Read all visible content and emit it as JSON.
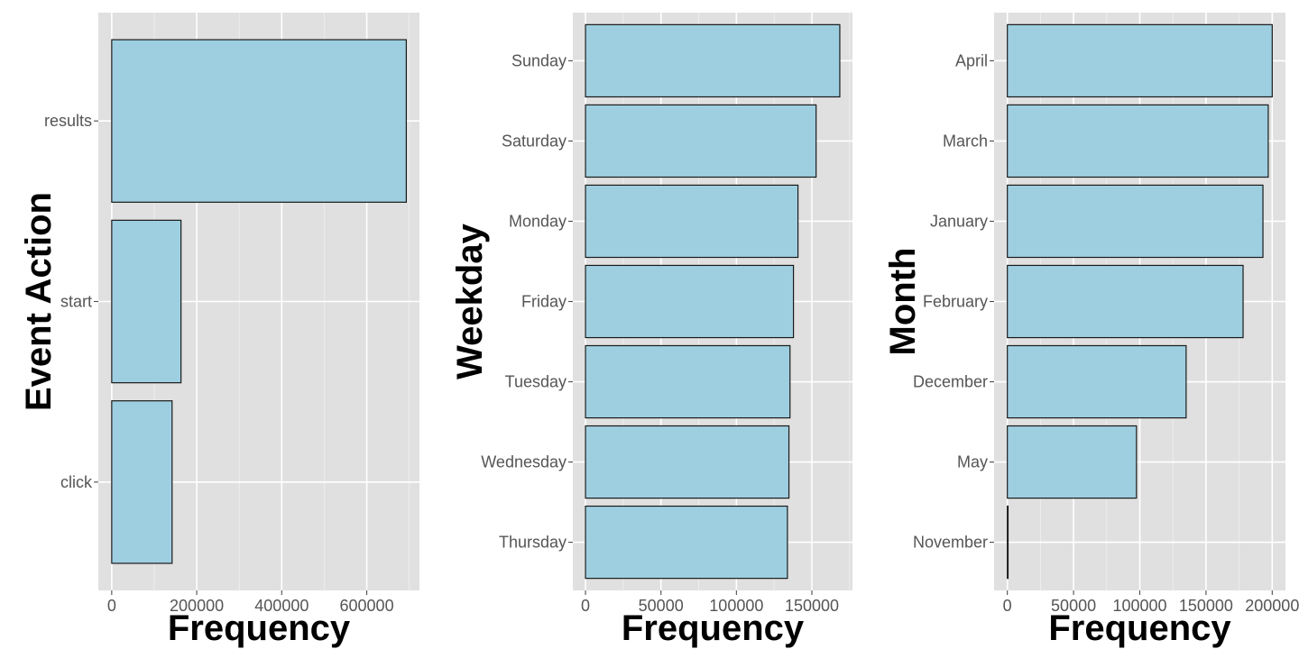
{
  "chart_data": [
    {
      "type": "bar",
      "orientation": "horizontal",
      "categories": [
        "results",
        "start",
        "click"
      ],
      "values": [
        693000,
        163000,
        142000
      ],
      "xlabel": "Frequency",
      "ylabel": "Event Action",
      "xlim": [
        -31500,
        724000
      ],
      "x_ticks": [
        0,
        200000,
        400000,
        600000
      ],
      "x_tick_labels": [
        "0",
        "200000",
        "400000",
        "600000"
      ],
      "grid": true,
      "bar_fill": "#9ecfe0",
      "bar_outline": "#1a1a1a"
    },
    {
      "type": "bar",
      "orientation": "horizontal",
      "categories": [
        "Sunday",
        "Saturday",
        "Monday",
        "Friday",
        "Tuesday",
        "Wednesday",
        "Thursday"
      ],
      "values": [
        168500,
        152800,
        140800,
        137800,
        135500,
        134800,
        133800
      ],
      "xlabel": "Frequency",
      "ylabel": "Weekday",
      "xlim": [
        -8400,
        176900
      ],
      "x_ticks": [
        0,
        50000,
        100000,
        150000
      ],
      "x_tick_labels": [
        "0",
        "50000",
        "100000",
        "150000"
      ],
      "grid": true,
      "bar_fill": "#9ecfe0",
      "bar_outline": "#1a1a1a"
    },
    {
      "type": "bar",
      "orientation": "horizontal",
      "categories": [
        "April",
        "March",
        "January",
        "February",
        "December",
        "May",
        "November"
      ],
      "values": [
        200000,
        197000,
        193000,
        178000,
        135000,
        97500,
        300
      ],
      "xlabel": "Frequency",
      "ylabel": "Month",
      "xlim": [
        -10000,
        210000
      ],
      "x_ticks": [
        0,
        50000,
        100000,
        150000,
        200000
      ],
      "x_tick_labels": [
        "0",
        "50000",
        "100000",
        "150000",
        "200000"
      ],
      "grid": true,
      "bar_fill": "#9ecfe0",
      "bar_outline": "#1a1a1a"
    }
  ]
}
